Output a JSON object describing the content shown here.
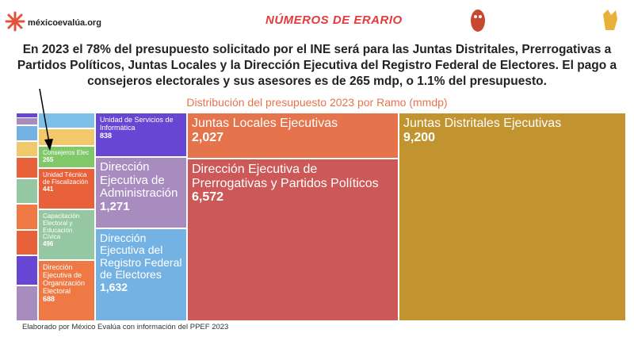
{
  "header": {
    "site": "méxicoevalúa.org",
    "brand": "NÚMEROS DE ERARIO"
  },
  "summary": "En 2023 el 78% del presupuesto solicitado por el INE será para las Juntas Distritales, Prerrogativas a Partidos Políticos, Juntas Locales y la Dirección Ejecutiva del Registro Federal de Electores. El pago a consejeros electorales y sus asesores es de 265 mdp, o 1.1% del presupuesto.",
  "chart_data": {
    "type": "treemap",
    "title": "Distribución del presupuesto 2023 por Ramo (mmdp)",
    "categories": [
      "Juntas Distritales Ejecutivas",
      "Dirección Ejecutiva de Prerrogativas y Partidos Políticos",
      "Juntas Locales Ejecutivas",
      "Dirección Ejecutiva del Registro Federal de Electores",
      "Dirección Ejecutiva de Administración",
      "Unidad de Servicios de Informática",
      "Dirección Ejecutiva de Organización Electoral",
      "Capacitación Electoral y Educación Cívica",
      "Unidad Técnica de Fiscalización",
      "Consejeros Elec",
      null,
      null,
      null,
      null,
      null,
      null,
      null,
      null,
      null,
      null,
      null,
      null,
      null,
      null
    ],
    "values": [
      9200,
      6572,
      2027,
      1632,
      1271,
      838,
      688,
      496,
      441,
      265,
      175,
      190,
      20,
      34,
      67,
      67,
      91,
      108,
      111,
      108,
      128,
      151,
      0,
      0
    ],
    "value_labels": [
      "9,200",
      "6,572",
      "2,027",
      "1,632",
      "1,271",
      "838",
      "688",
      "496",
      "441",
      "265",
      null,
      null,
      null,
      null,
      null,
      null,
      null,
      null,
      null,
      null,
      null,
      null,
      null,
      null
    ],
    "colors": [
      "#c2942f",
      "#cd5858",
      "#e5744d",
      "#73b2e3",
      "#a88cc0",
      "#6746d4",
      "#ef7945",
      "#95c8a2",
      "#e9613b",
      "#80c86a",
      "#7cc0e8",
      "#f1c96a",
      "#6746d4",
      "#a88cc0",
      "#73b2e3",
      "#f1c96a",
      "#e9613b",
      "#95c8a2",
      "#ef7945",
      "#e9613b",
      "#6746d4",
      "#a88cc0",
      "#a88cc0",
      "#a88cc0"
    ]
  },
  "footer": "Elaborado por México Evalúa con información del PPEF 2023"
}
